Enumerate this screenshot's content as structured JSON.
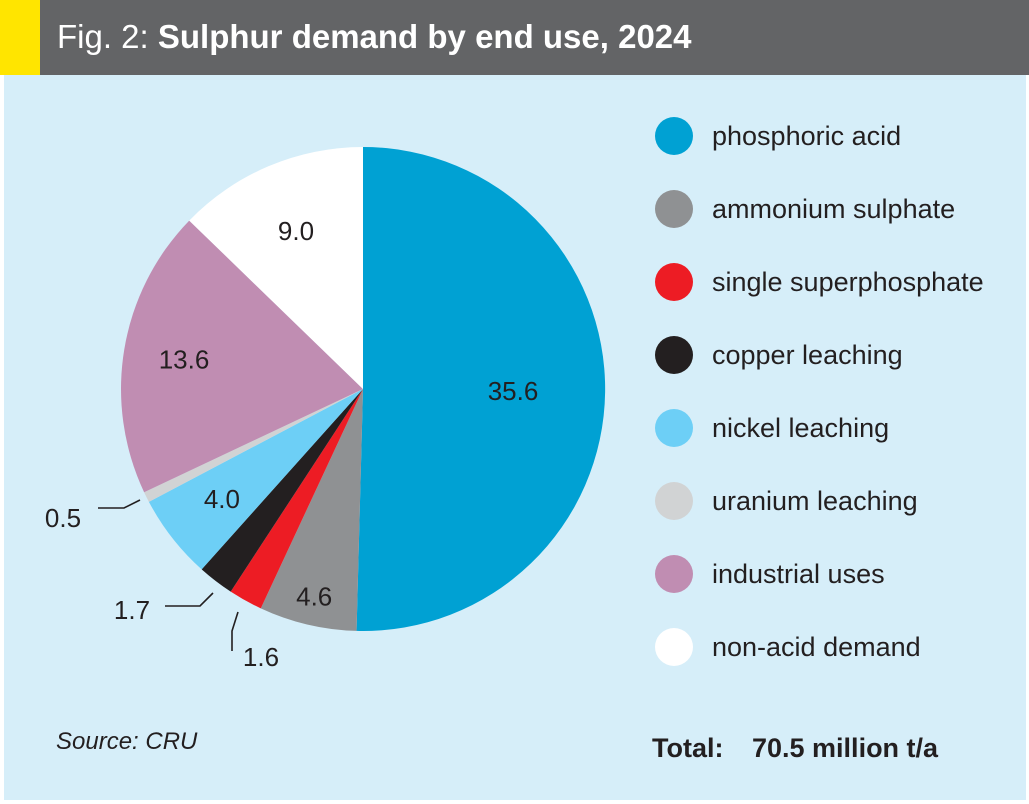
{
  "header": {
    "prefix": "Fig. 2:",
    "title": "Sulphur demand by end use, 2024"
  },
  "chart_data": {
    "type": "pie",
    "title": "Sulphur demand by end use, 2024",
    "slices": [
      {
        "label": "phosphoric acid",
        "value": 35.6,
        "value_label": "35.6",
        "color": "#00a1d3"
      },
      {
        "label": "ammonium sulphate",
        "value": 4.6,
        "value_label": "4.6",
        "color": "#8f9193"
      },
      {
        "label": "single superphosphate",
        "value": 1.6,
        "value_label": "1.6",
        "color": "#ed1c24"
      },
      {
        "label": "copper leaching",
        "value": 1.7,
        "value_label": "1.7",
        "color": "#231f20"
      },
      {
        "label": "nickel leaching",
        "value": 4.0,
        "value_label": "4.0",
        "color": "#6dcff6"
      },
      {
        "label": "uranium leaching",
        "value": 0.5,
        "value_label": "0.5",
        "color": "#d1d3d4"
      },
      {
        "label": "industrial uses",
        "value": 13.6,
        "value_label": "13.6",
        "color": "#c08db2"
      },
      {
        "label": "non-acid demand",
        "value": 9.0,
        "value_label": "9.0",
        "color": "#ffffff"
      }
    ],
    "start": "12 o'clock",
    "direction": "clockwise",
    "legend_position": "right"
  },
  "footer": {
    "source": "Source: CRU",
    "total_label": "Total:",
    "total_value": "70.5 million t/a"
  }
}
